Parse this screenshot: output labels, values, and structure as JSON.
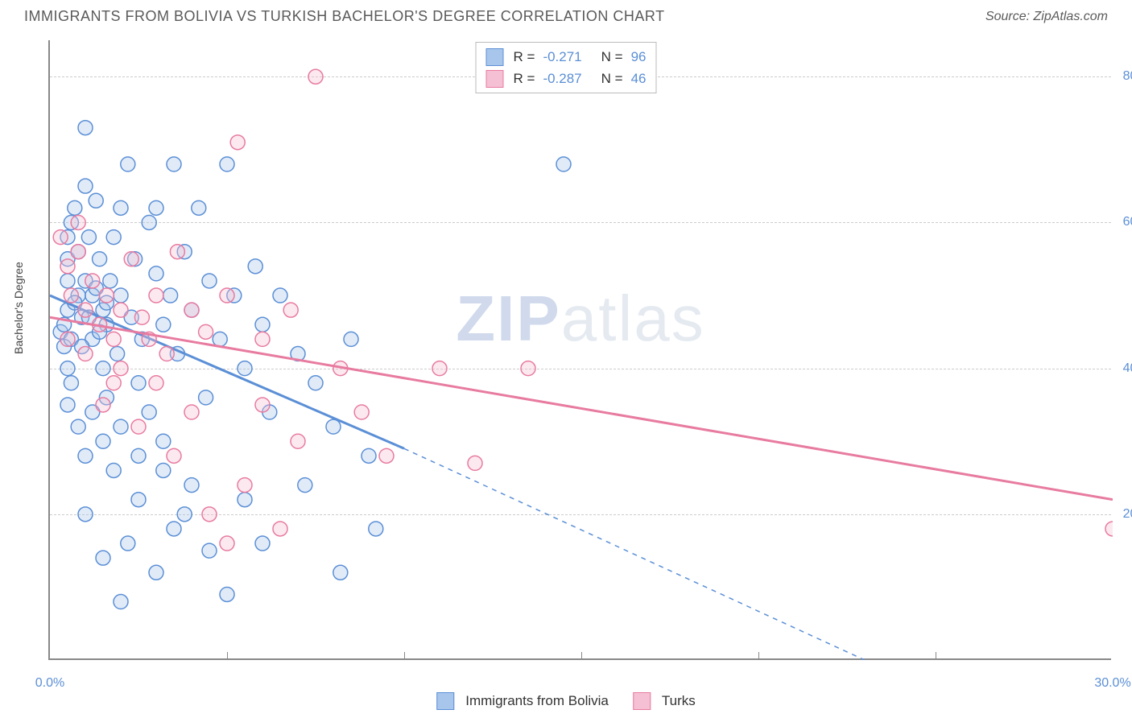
{
  "title": "IMMIGRANTS FROM BOLIVIA VS TURKISH BACHELOR'S DEGREE CORRELATION CHART",
  "source_label": "Source: ZipAtlas.com",
  "y_axis_label": "Bachelor's Degree",
  "watermark_bold": "ZIP",
  "watermark_light": "atlas",
  "chart": {
    "type": "scatter",
    "xlim": [
      0,
      30
    ],
    "ylim": [
      0,
      85
    ],
    "x_tick_major": [
      0,
      30
    ],
    "x_tick_minor": [
      5,
      10,
      15,
      20,
      25
    ],
    "y_ticks": [
      20,
      40,
      60,
      80
    ],
    "x_tick_format": "%",
    "y_tick_format": "%",
    "background_color": "#ffffff",
    "grid_color": "#cccccc",
    "axis_color": "#888888",
    "tick_label_color": "#5b8fd6",
    "tick_fontsize": 16,
    "marker_radius": 9,
    "marker_stroke_width": 1.5,
    "marker_fill_opacity": 0.35,
    "series": [
      {
        "name": "Immigrants from Bolivia",
        "color_stroke": "#5b8fd6",
        "color_fill": "#a8c6ec",
        "R": -0.271,
        "N": 96,
        "trend_solid": {
          "x1": 0,
          "y1": 50,
          "x2": 10,
          "y2": 29
        },
        "trend_dash": {
          "x1": 10,
          "y1": 29,
          "x2": 23,
          "y2": 0
        },
        "points": [
          [
            0.3,
            45
          ],
          [
            0.4,
            43
          ],
          [
            0.5,
            48
          ],
          [
            0.5,
            52
          ],
          [
            0.5,
            55
          ],
          [
            0.5,
            58
          ],
          [
            0.6,
            60
          ],
          [
            0.7,
            62
          ],
          [
            0.5,
            40
          ],
          [
            0.6,
            38
          ],
          [
            0.8,
            56
          ],
          [
            0.8,
            50
          ],
          [
            0.9,
            47
          ],
          [
            1.0,
            73
          ],
          [
            1.0,
            65
          ],
          [
            1.0,
            52
          ],
          [
            1.1,
            58
          ],
          [
            1.2,
            44
          ],
          [
            1.2,
            50
          ],
          [
            1.3,
            63
          ],
          [
            1.4,
            55
          ],
          [
            1.5,
            48
          ],
          [
            1.5,
            40
          ],
          [
            1.6,
            36
          ],
          [
            1.6,
            46
          ],
          [
            1.7,
            52
          ],
          [
            1.8,
            58
          ],
          [
            1.9,
            42
          ],
          [
            2.0,
            50
          ],
          [
            2.0,
            62
          ],
          [
            2.2,
            68
          ],
          [
            2.3,
            47
          ],
          [
            2.4,
            55
          ],
          [
            2.5,
            38
          ],
          [
            2.6,
            44
          ],
          [
            2.8,
            60
          ],
          [
            3.0,
            53
          ],
          [
            3.0,
            62
          ],
          [
            3.2,
            46
          ],
          [
            3.4,
            50
          ],
          [
            3.5,
            68
          ],
          [
            3.6,
            42
          ],
          [
            3.8,
            56
          ],
          [
            4.0,
            48
          ],
          [
            4.2,
            62
          ],
          [
            4.4,
            36
          ],
          [
            4.5,
            52
          ],
          [
            4.8,
            44
          ],
          [
            5.0,
            68
          ],
          [
            5.2,
            50
          ],
          [
            5.5,
            40
          ],
          [
            5.8,
            54
          ],
          [
            6.0,
            46
          ],
          [
            6.2,
            34
          ],
          [
            6.5,
            50
          ],
          [
            7.0,
            42
          ],
          [
            7.2,
            24
          ],
          [
            7.5,
            38
          ],
          [
            8.0,
            32
          ],
          [
            8.2,
            12
          ],
          [
            8.5,
            44
          ],
          [
            9.0,
            28
          ],
          [
            9.2,
            18
          ],
          [
            14.5,
            68
          ],
          [
            1.0,
            20
          ],
          [
            1.5,
            14
          ],
          [
            2.0,
            8
          ],
          [
            2.2,
            16
          ],
          [
            2.5,
            22
          ],
          [
            3.0,
            12
          ],
          [
            3.2,
            26
          ],
          [
            3.5,
            18
          ],
          [
            3.8,
            20
          ],
          [
            4.0,
            24
          ],
          [
            4.5,
            15
          ],
          [
            5.0,
            9
          ],
          [
            5.5,
            22
          ],
          [
            6.0,
            16
          ],
          [
            0.5,
            35
          ],
          [
            0.8,
            32
          ],
          [
            1.0,
            28
          ],
          [
            1.2,
            34
          ],
          [
            1.5,
            30
          ],
          [
            1.8,
            26
          ],
          [
            2.0,
            32
          ],
          [
            2.5,
            28
          ],
          [
            2.8,
            34
          ],
          [
            3.2,
            30
          ],
          [
            0.4,
            46
          ],
          [
            0.6,
            44
          ],
          [
            0.7,
            49
          ],
          [
            0.9,
            43
          ],
          [
            1.1,
            47
          ],
          [
            1.3,
            51
          ],
          [
            1.4,
            45
          ],
          [
            1.6,
            49
          ]
        ]
      },
      {
        "name": "Turks",
        "color_stroke": "#e87ba0",
        "color_fill": "#f5c0d3",
        "R": -0.287,
        "N": 46,
        "trend_solid": {
          "x1": 0,
          "y1": 47,
          "x2": 30,
          "y2": 22
        },
        "trend_dash": null,
        "points": [
          [
            0.3,
            58
          ],
          [
            0.5,
            54
          ],
          [
            0.6,
            50
          ],
          [
            0.8,
            56
          ],
          [
            1.0,
            48
          ],
          [
            1.2,
            52
          ],
          [
            1.4,
            46
          ],
          [
            1.6,
            50
          ],
          [
            1.8,
            44
          ],
          [
            2.0,
            48
          ],
          [
            2.3,
            55
          ],
          [
            2.6,
            47
          ],
          [
            3.0,
            50
          ],
          [
            3.3,
            42
          ],
          [
            3.6,
            56
          ],
          [
            4.0,
            48
          ],
          [
            4.4,
            45
          ],
          [
            5.0,
            50
          ],
          [
            5.3,
            71
          ],
          [
            6.0,
            44
          ],
          [
            6.8,
            48
          ],
          [
            7.5,
            80
          ],
          [
            8.2,
            40
          ],
          [
            8.8,
            34
          ],
          [
            9.5,
            28
          ],
          [
            11.0,
            40
          ],
          [
            12.0,
            27
          ],
          [
            13.5,
            40
          ],
          [
            30.0,
            18
          ],
          [
            0.8,
            60
          ],
          [
            1.5,
            35
          ],
          [
            2.0,
            40
          ],
          [
            2.5,
            32
          ],
          [
            3.0,
            38
          ],
          [
            3.5,
            28
          ],
          [
            4.0,
            34
          ],
          [
            4.5,
            20
          ],
          [
            5.0,
            16
          ],
          [
            5.5,
            24
          ],
          [
            6.0,
            35
          ],
          [
            6.5,
            18
          ],
          [
            7.0,
            30
          ],
          [
            0.5,
            44
          ],
          [
            1.0,
            42
          ],
          [
            1.8,
            38
          ],
          [
            2.8,
            44
          ]
        ]
      }
    ]
  },
  "legend_top": {
    "r_label": "R =",
    "n_label": "N ="
  },
  "legend_bottom": {
    "items": [
      "Immigrants from Bolivia",
      "Turks"
    ]
  }
}
